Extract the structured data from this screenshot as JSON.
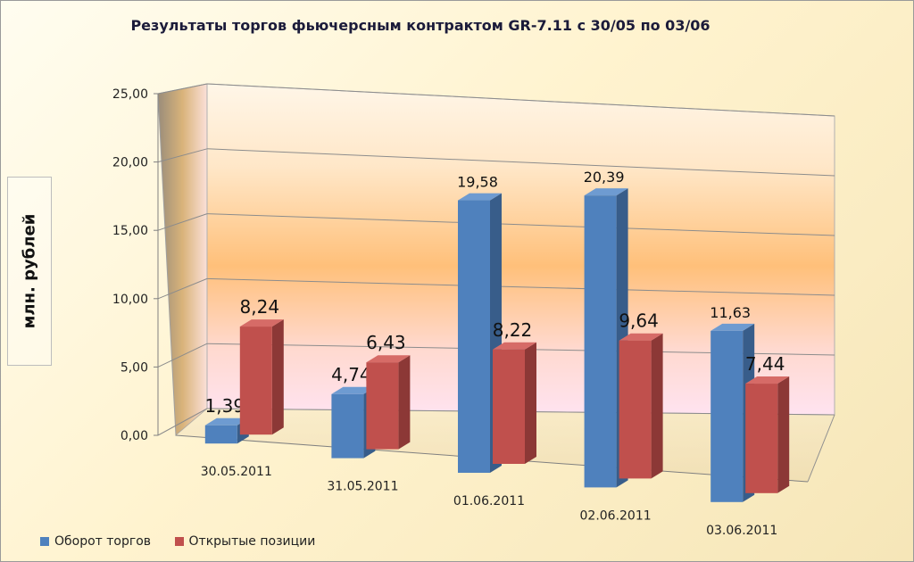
{
  "chart_data": {
    "type": "bar",
    "title": "Результаты торгов фьючерсным контрактом GR-7.11 с 30/05 по 03/06",
    "ylabel": "млн.  рублей",
    "xlabel": "",
    "ylim": [
      0,
      25
    ],
    "yticks": [
      "0,00",
      "5,00",
      "10,00",
      "15,00",
      "20,00",
      "25,00"
    ],
    "categories": [
      "30.05.2011",
      "31.05.2011",
      "01.06.2011",
      "02.06.2011",
      "03.06.2011"
    ],
    "series": [
      {
        "name": "Оборот торгов",
        "values": [
          1.39,
          4.74,
          19.58,
          20.39,
          11.63
        ],
        "labels": [
          "1,39",
          "4,74",
          "19,58",
          "20,39",
          "11,63"
        ],
        "color": "#4f81bd"
      },
      {
        "name": "Открытые позиции",
        "values": [
          8.24,
          6.43,
          8.22,
          9.64,
          7.44
        ],
        "labels": [
          "8,24",
          "6,43",
          "8,22",
          "9,64",
          "7,44"
        ],
        "color": "#c0504d"
      }
    ],
    "grid": true,
    "legend_position": "bottom-left",
    "style": "3d-clustered-column"
  }
}
